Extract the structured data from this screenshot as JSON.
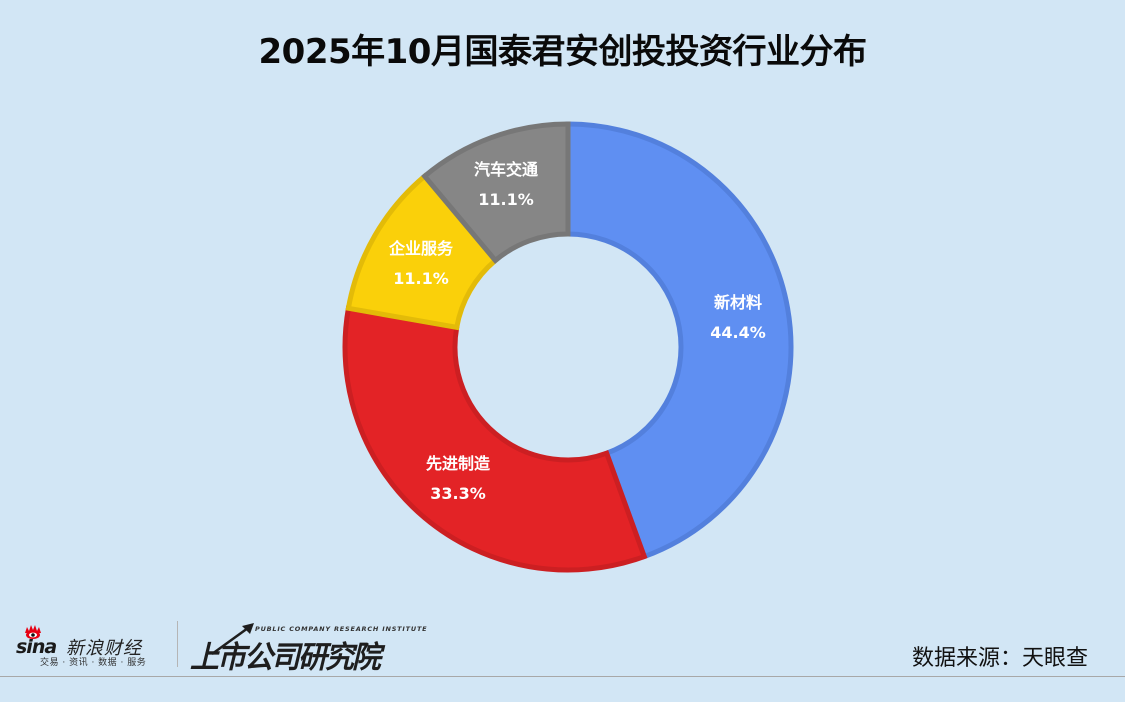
{
  "title": "2025年10月国泰君安创投投资行业分布",
  "chart_data": {
    "type": "pie",
    "subtype": "donut",
    "title": "2025年10月国泰君安创投投资行业分布",
    "categories": [
      "新材料",
      "先进制造",
      "企业服务",
      "汽车交通"
    ],
    "values": [
      44.4,
      33.3,
      11.1,
      11.1
    ],
    "unit": "%",
    "labels": [
      {
        "name": "新材料",
        "pct": "44.4%"
      },
      {
        "name": "先进制造",
        "pct": "33.3%"
      },
      {
        "name": "企业服务",
        "pct": "11.1%"
      },
      {
        "name": "汽车交通",
        "pct": "11.1%"
      }
    ],
    "colors": [
      "#5f8ff2",
      "#e32326",
      "#fad00a",
      "#868686"
    ],
    "stroke_colors": [
      "#5380dd",
      "#cc1f22",
      "#e3bb08",
      "#777777"
    ],
    "start_angle": "12 o'clock, clockwise",
    "legend": "none (inline labels)"
  },
  "footer": {
    "sina_logo_text": "sina",
    "sina_brand": "新浪财经",
    "sina_tagline": "交易 · 资讯 · 数据 · 服务",
    "institute_en": "PUBLIC COMPANY RESEARCH INSTITUTE",
    "institute_cn": "上市公司研究院",
    "source": "数据来源：天眼查"
  },
  "colors": {
    "background": "#d2e6f5",
    "title": "#0a0a0a"
  }
}
